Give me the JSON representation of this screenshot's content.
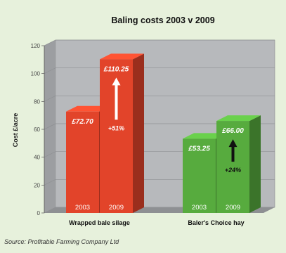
{
  "chart_data": {
    "type": "bar",
    "title": "Baling costs 2003 v 2009",
    "ylabel": "Cost £/acre",
    "ylim": [
      0,
      120
    ],
    "yticks": [
      0,
      20,
      40,
      60,
      80,
      100,
      120
    ],
    "categories": [
      "Wrapped bale silage",
      "Baler's Choice hay"
    ],
    "series": [
      {
        "name": "2003",
        "values": [
          72.7,
          53.25
        ],
        "labels": [
          "£72.70",
          "£53.25"
        ]
      },
      {
        "name": "2009",
        "values": [
          110.25,
          66.0
        ],
        "labels": [
          "£110.25",
          "£66.00"
        ]
      }
    ],
    "changes": [
      "+51%",
      "+24%"
    ],
    "group_colors": [
      "#e2442a",
      "#57ab3e"
    ],
    "arrow_colors": [
      "#ffffff",
      "#111111"
    ],
    "grid": false,
    "style": "3d-bars"
  },
  "source": "Source: Profitable Farming Company Ltd"
}
